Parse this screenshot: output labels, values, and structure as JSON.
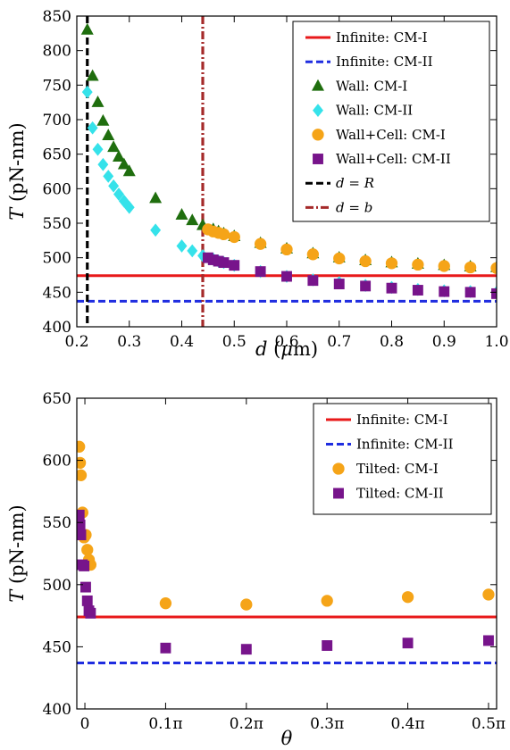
{
  "chart_data": [
    {
      "type": "scatter",
      "xlabel": "d (μm)",
      "ylabel": "T (pN-nm)",
      "xlim": [
        0.2,
        1.0
      ],
      "ylim": [
        400,
        850
      ],
      "x_ticks": [
        0.2,
        0.3,
        0.4,
        0.5,
        0.6,
        0.7,
        0.8,
        0.9,
        1.0
      ],
      "x_tick_labels": [
        "0.2",
        "0.3",
        "0.4",
        "0.5",
        "0.6",
        "0.7",
        "0.8",
        "0.9",
        "1.0"
      ],
      "y_ticks": [
        400,
        450,
        500,
        550,
        600,
        650,
        700,
        750,
        800,
        850
      ],
      "y_tick_labels": [
        "400",
        "450",
        "500",
        "550",
        "600",
        "650",
        "700",
        "750",
        "800",
        "850"
      ],
      "legend_position": "top-right",
      "grid": false,
      "hlines": [
        {
          "name": "Infinite: CM-I",
          "y": 474,
          "color": "#e8191a",
          "style": "solid"
        },
        {
          "name": "Infinite: CM-II",
          "y": 437,
          "color": "#1f2de0",
          "style": "dashed"
        }
      ],
      "vlines": [
        {
          "name": "d = R",
          "x": 0.22,
          "color": "#000000",
          "style": "dashed"
        },
        {
          "name": "d = b",
          "x": 0.44,
          "color": "#a52a2a",
          "style": "dashdot"
        }
      ],
      "series": [
        {
          "name": "Wall: CM-I",
          "marker": "triangle",
          "color": "#1f6e0e",
          "x": [
            0.22,
            0.23,
            0.24,
            0.25,
            0.26,
            0.27,
            0.28,
            0.29,
            0.3,
            0.35,
            0.4,
            0.42,
            0.44,
            0.46,
            0.47,
            0.48,
            0.5,
            0.55,
            0.6,
            0.65,
            0.7,
            0.75,
            0.8,
            0.85,
            0.9,
            0.95,
            1.0
          ],
          "y": [
            830,
            763,
            725,
            698,
            677,
            660,
            646,
            635,
            625,
            586,
            562,
            554,
            547,
            541,
            538,
            535,
            531,
            521,
            513,
            506,
            500,
            496,
            493,
            491,
            489,
            487,
            486
          ]
        },
        {
          "name": "Wall: CM-II",
          "marker": "diamond",
          "color": "#35e2ea",
          "x": [
            0.22,
            0.23,
            0.24,
            0.25,
            0.26,
            0.27,
            0.28,
            0.29,
            0.3,
            0.35,
            0.4,
            0.42,
            0.44,
            0.46,
            0.47,
            0.48,
            0.5,
            0.55,
            0.6,
            0.65,
            0.7,
            0.75,
            0.8,
            0.85,
            0.9,
            0.95,
            1.0
          ],
          "y": [
            740,
            688,
            657,
            635,
            618,
            604,
            592,
            582,
            573,
            540,
            517,
            510,
            503,
            498,
            495,
            493,
            489,
            480,
            473,
            468,
            464,
            460,
            457,
            454,
            452,
            451,
            450
          ]
        },
        {
          "name": "Wall+Cell: CM-I",
          "marker": "circle",
          "color": "#f5a418",
          "x": [
            0.45,
            0.46,
            0.47,
            0.48,
            0.5,
            0.55,
            0.6,
            0.65,
            0.7,
            0.75,
            0.8,
            0.85,
            0.9,
            0.95,
            1.0
          ],
          "y": [
            541,
            538,
            536,
            534,
            530,
            520,
            512,
            505,
            499,
            495,
            492,
            490,
            488,
            486,
            485
          ]
        },
        {
          "name": "Wall+Cell: CM-II",
          "marker": "square",
          "color": "#77148b",
          "x": [
            0.45,
            0.46,
            0.47,
            0.48,
            0.5,
            0.55,
            0.6,
            0.65,
            0.7,
            0.75,
            0.8,
            0.85,
            0.9,
            0.95,
            1.0
          ],
          "y": [
            500,
            497,
            495,
            493,
            489,
            480,
            473,
            467,
            462,
            459,
            456,
            453,
            451,
            450,
            448
          ]
        }
      ],
      "legend": [
        {
          "label": "Infinite: CM-I",
          "kind": "line",
          "color": "#e8191a",
          "style": "solid"
        },
        {
          "label": "Infinite: CM-II",
          "kind": "line",
          "color": "#1f2de0",
          "style": "dashed"
        },
        {
          "label": "Wall: CM-I",
          "kind": "marker",
          "marker": "triangle",
          "color": "#1f6e0e"
        },
        {
          "label": "Wall: CM-II",
          "kind": "marker",
          "marker": "diamond",
          "color": "#35e2ea"
        },
        {
          "label": "Wall+Cell: CM-I",
          "kind": "marker",
          "marker": "circle",
          "color": "#f5a418"
        },
        {
          "label": "Wall+Cell: CM-II",
          "kind": "marker",
          "marker": "square",
          "color": "#77148b"
        },
        {
          "label": "d = R",
          "kind": "line",
          "color": "#000000",
          "style": "dashed"
        },
        {
          "label": "d = b",
          "kind": "line",
          "color": "#a52a2a",
          "style": "dashdot"
        }
      ]
    },
    {
      "type": "scatter",
      "xlabel": "θ",
      "ylabel": "T (pN-nm)",
      "xlim": [
        -0.01,
        0.51
      ],
      "ylim": [
        400,
        650
      ],
      "x_ticks": [
        0,
        0.1,
        0.2,
        0.3,
        0.4,
        0.5
      ],
      "x_tick_labels": [
        "0",
        "0.1π",
        "0.2π",
        "0.3π",
        "0.4π",
        "0.5π"
      ],
      "y_ticks": [
        400,
        450,
        500,
        550,
        600,
        650
      ],
      "y_tick_labels": [
        "400",
        "450",
        "500",
        "550",
        "600",
        "650"
      ],
      "legend_position": "top-right",
      "grid": false,
      "hlines": [
        {
          "name": "Infinite: CM-I",
          "y": 474,
          "color": "#e8191a",
          "style": "solid"
        },
        {
          "name": "Infinite: CM-II",
          "y": 437,
          "color": "#1f2de0",
          "style": "dashed"
        }
      ],
      "series": [
        {
          "name": "Tilted: CM-I",
          "marker": "circle",
          "color": "#f5a418",
          "x": [
            -0.007,
            -0.006,
            -0.005,
            -0.003,
            -0.001,
            0.001,
            0.003,
            0.005,
            0.007,
            0.1,
            0.2,
            0.3,
            0.4,
            0.5
          ],
          "y": [
            611,
            598,
            588,
            558,
            538,
            540,
            528,
            520,
            516,
            485,
            484,
            487,
            490,
            492
          ]
        },
        {
          "name": "Tilted: CM-II",
          "marker": "square",
          "color": "#77148b",
          "x": [
            -0.007,
            -0.006,
            -0.005,
            -0.003,
            -0.001,
            0.001,
            0.003,
            0.005,
            0.007,
            0.1,
            0.2,
            0.3,
            0.4,
            0.5
          ],
          "y": [
            556,
            548,
            540,
            516,
            515,
            498,
            487,
            479,
            477,
            449,
            448,
            451,
            453,
            455
          ]
        }
      ],
      "legend": [
        {
          "label": "Infinite: CM-I",
          "kind": "line",
          "color": "#e8191a",
          "style": "solid"
        },
        {
          "label": "Infinite: CM-II",
          "kind": "line",
          "color": "#1f2de0",
          "style": "dashed"
        },
        {
          "label": "Tilted: CM-I",
          "kind": "marker",
          "marker": "circle",
          "color": "#f5a418"
        },
        {
          "label": "Tilted: CM-II",
          "kind": "marker",
          "marker": "square",
          "color": "#77148b"
        }
      ]
    }
  ]
}
